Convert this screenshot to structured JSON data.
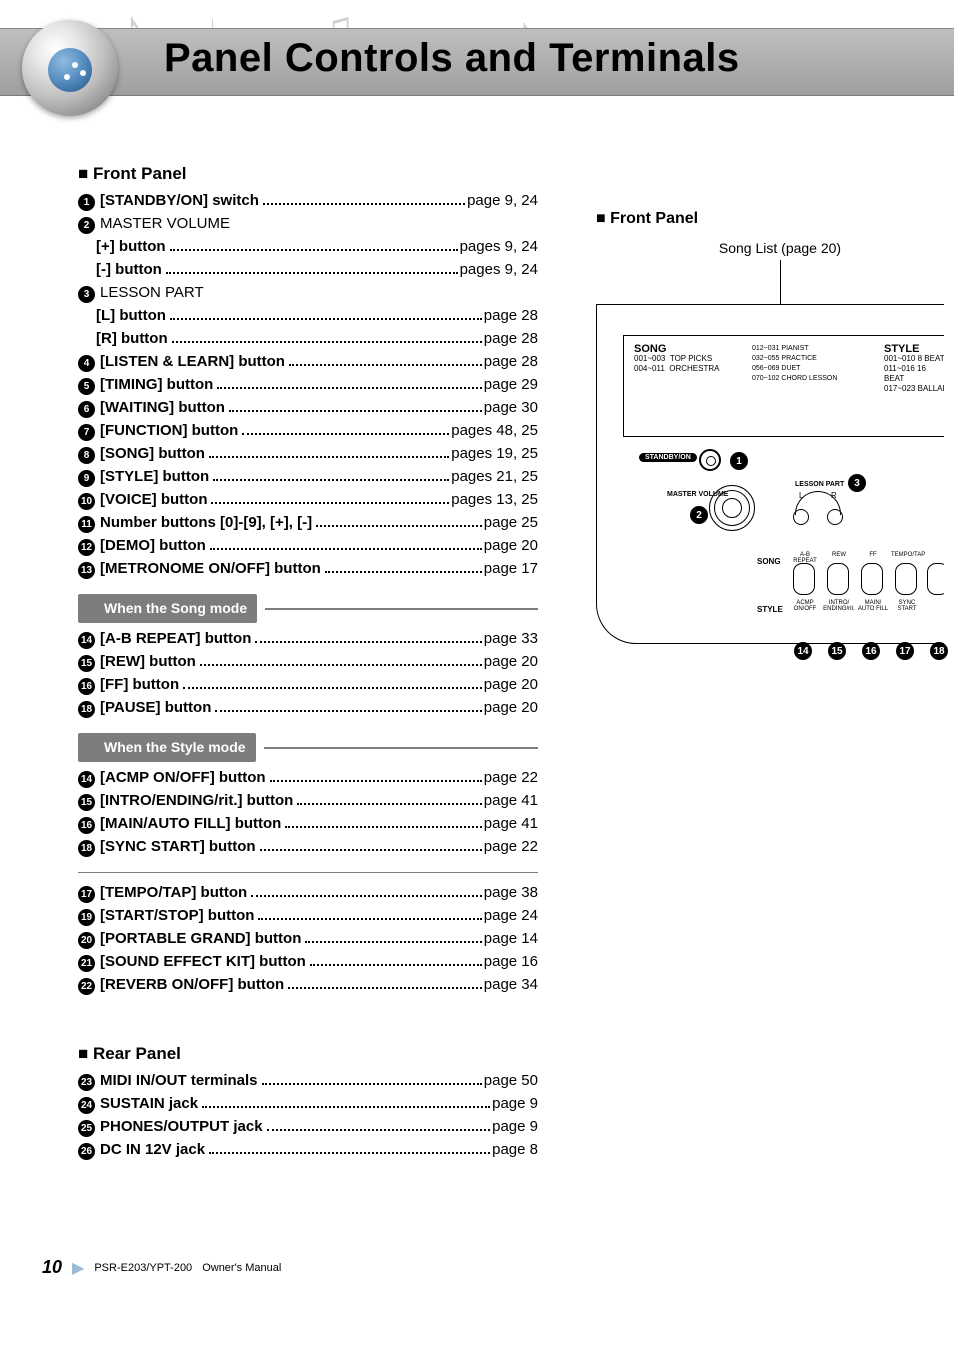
{
  "banner": {
    "title": "Panel Controls and Terminals"
  },
  "front_panel_heading": "Front Panel",
  "front_panel_heading_right": "Front Panel",
  "rear_panel_heading": "Rear Panel",
  "songlist_caption": "Song List (page 20)",
  "mode1": "When the Song mode",
  "mode2": "When the Style mode",
  "items_a": [
    {
      "n": "1",
      "label": "[STANDBY/ON] switch",
      "page": "page 9, 24"
    },
    {
      "n": "2",
      "label": "MASTER VOLUME",
      "page": "",
      "plain": true,
      "nopage": true
    },
    {
      "n": "",
      "label": "[+] button",
      "page": "pages 9, 24",
      "sub": true
    },
    {
      "n": "",
      "label": "[-] button",
      "page": "pages 9, 24",
      "sub": true
    },
    {
      "n": "3",
      "label": "LESSON PART",
      "page": "",
      "plain": true,
      "nopage": true
    },
    {
      "n": "",
      "label": "[L] button",
      "page": "page 28",
      "sub": true
    },
    {
      "n": "",
      "label": "[R] button",
      "page": "page 28",
      "sub": true
    },
    {
      "n": "4",
      "label": "[LISTEN & LEARN] button",
      "page": "page 28"
    },
    {
      "n": "5",
      "label": "[TIMING] button",
      "page": "page 29"
    },
    {
      "n": "6",
      "label": "[WAITING] button",
      "page": "page 30"
    },
    {
      "n": "7",
      "label": "[FUNCTION] button",
      "page": "pages 48, 25"
    },
    {
      "n": "8",
      "label": "[SONG] button",
      "page": "pages 19, 25"
    },
    {
      "n": "9",
      "label": "[STYLE] button",
      "page": "pages 21, 25"
    },
    {
      "n": "10",
      "label": "[VOICE] button",
      "page": "pages 13, 25"
    },
    {
      "n": "11",
      "label": "Number buttons [0]-[9], [+], [-]",
      "page": "page 25"
    },
    {
      "n": "12",
      "label": "[DEMO] button",
      "page": "page 20"
    },
    {
      "n": "13",
      "label": "[METRONOME ON/OFF] button",
      "page": "page 17"
    }
  ],
  "items_song": [
    {
      "n": "14",
      "label": "[A-B REPEAT] button",
      "page": "page 33"
    },
    {
      "n": "15",
      "label": "[REW] button",
      "page": "page 20"
    },
    {
      "n": "16",
      "label": "[FF] button",
      "page": "page 20"
    },
    {
      "n": "18",
      "label": "[PAUSE] button",
      "page": "page 20"
    }
  ],
  "items_style": [
    {
      "n": "14",
      "label": "[ACMP ON/OFF] button",
      "page": "page 22"
    },
    {
      "n": "15",
      "label": "[INTRO/ENDING/rit.] button",
      "page": "page 41"
    },
    {
      "n": "16",
      "label": "[MAIN/AUTO FILL] button",
      "page": "page 41"
    },
    {
      "n": "18",
      "label": "[SYNC START] button",
      "page": "page 22"
    }
  ],
  "items_b": [
    {
      "n": "17",
      "label": "[TEMPO/TAP] button",
      "page": "page 38"
    },
    {
      "n": "19",
      "label": "[START/STOP] button",
      "page": "page 24"
    },
    {
      "n": "20",
      "label": "[PORTABLE GRAND] button",
      "page": "page 14"
    },
    {
      "n": "21",
      "label": "[SOUND EFFECT KIT] button",
      "page": "page 16"
    },
    {
      "n": "22",
      "label": "[REVERB ON/OFF] button",
      "page": "page 34"
    }
  ],
  "items_rear": [
    {
      "n": "23",
      "label": "MIDI IN/OUT terminals",
      "page": "page 50"
    },
    {
      "n": "24",
      "label": "SUSTAIN jack",
      "page": "page 9"
    },
    {
      "n": "25",
      "label": "PHONES/OUTPUT jack",
      "page": "page 9"
    },
    {
      "n": "26",
      "label": "DC IN 12V jack",
      "page": "page 8"
    }
  ],
  "device": {
    "song_header": "SONG",
    "song_lines": [
      "001~003",
      "004~011"
    ],
    "song_labels": [
      "TOP PICKS",
      "ORCHESTRA"
    ],
    "mid_lines": [
      "012~031",
      "032~055",
      "056~069",
      "070~102"
    ],
    "mid_labels": [
      "PIANIST",
      "PRACTICE",
      "DUET",
      "CHORD LESSON"
    ],
    "style_header": "STYLE",
    "style_lines": [
      "001~010",
      "011~016",
      "017~023"
    ],
    "style_labels": [
      "8 BEAT",
      "16 BEAT",
      "BALLAD"
    ],
    "standby": "STANDBY/ON",
    "mv": "MASTER VOLUME",
    "lesson": "LESSON PART",
    "row_song": "SONG",
    "row_style": "STYLE",
    "btn_top": [
      "A-B REPEAT",
      "REW",
      "FF",
      "TEMPO/TAP"
    ],
    "btn_bot": [
      "ACMP ON/OFF",
      "INTRO/ ENDING/rit.",
      "MAIN/ AUTO FILL",
      "SYNC START"
    ]
  },
  "diagram_marks": {
    "m1": "1",
    "m2": "2",
    "m3": "3",
    "m14": "14",
    "m15": "15",
    "m16": "16",
    "m17": "17",
    "m18": "18"
  },
  "footer": {
    "page": "10",
    "model": "PSR-E203/YPT-200",
    "doc": "Owner's Manual"
  }
}
